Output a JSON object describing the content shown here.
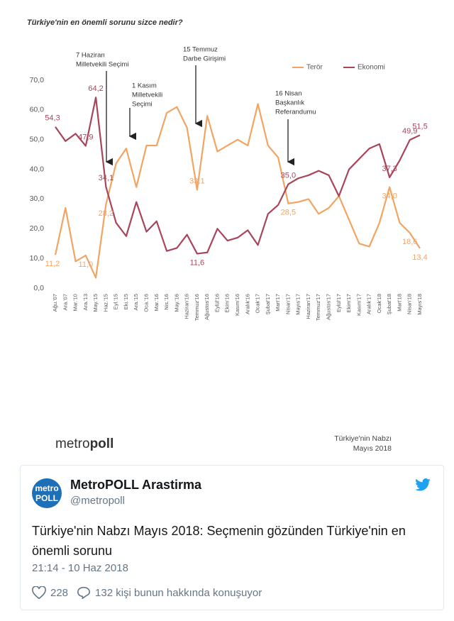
{
  "chart_data": {
    "type": "line",
    "title": "Türkiye'nin en önemli sorunu sizce nedir?",
    "categories": [
      "Ağu.'07",
      "Ara.'07",
      "Mar.'10",
      "Ara.'13",
      "May.'15",
      "Haz.'15",
      "Eyl.'15",
      "Eki.'15",
      "Ara.'15",
      "Oca.'16",
      "Mar.'16",
      "Nis.'16",
      "May.'16",
      "Haziran'16",
      "Temmuz'16",
      "Ağustos'16",
      "Eylül'16",
      "Ekim'16",
      "Kasım'16",
      "Aralık'16",
      "Ocak'17",
      "Şubat'17",
      "Mart'17",
      "Nisan'17",
      "Mayıs'17",
      "Haziran'17",
      "Temmuz'17",
      "Ağustos'17",
      "Eylül'17",
      "Ekim'17",
      "Kasım'17",
      "Aralık'17",
      "Ocak'18",
      "Şubat'18",
      "Mart'18",
      "Nisan'18",
      "Mayıs'18"
    ],
    "series": [
      {
        "name": "Terör",
        "color": "#f2a462",
        "values": [
          11.2,
          27,
          9,
          11.0,
          3.5,
          28.2,
          42,
          47,
          34,
          48,
          48,
          59,
          61,
          54,
          33.1,
          58,
          46,
          48,
          50,
          48,
          62,
          48,
          44,
          28.5,
          29,
          30,
          25,
          27,
          31,
          23,
          15,
          14,
          22,
          34.0,
          22,
          18.6,
          13.4
        ],
        "value_labels": [
          "11,2",
          null,
          null,
          "11,0",
          null,
          "28,2",
          null,
          null,
          null,
          null,
          null,
          null,
          null,
          null,
          "33,1",
          null,
          null,
          null,
          null,
          null,
          null,
          null,
          null,
          "28,5",
          null,
          null,
          null,
          null,
          null,
          null,
          null,
          null,
          null,
          "34,0",
          null,
          "18,6",
          "13,4"
        ]
      },
      {
        "name": "Ekonomi",
        "color": "#a9455a",
        "values": [
          54.3,
          49.5,
          52,
          47.9,
          64.2,
          34.1,
          22,
          17.5,
          29,
          19,
          22.5,
          12.5,
          13.5,
          18,
          11.6,
          12,
          20,
          16,
          17,
          19.5,
          14.5,
          25,
          28,
          35.0,
          37,
          38,
          39.5,
          38,
          31,
          40,
          43.5,
          47,
          48.5,
          37.3,
          43,
          49.9,
          51.5
        ],
        "value_labels": [
          "54,3",
          null,
          null,
          "47,9",
          "64,2",
          "34,1",
          null,
          null,
          null,
          null,
          null,
          null,
          null,
          null,
          "11,6",
          null,
          null,
          null,
          null,
          null,
          null,
          null,
          null,
          "35,0",
          null,
          null,
          null,
          null,
          null,
          null,
          null,
          null,
          null,
          "37,3",
          null,
          "49,9",
          "51,5"
        ]
      }
    ],
    "ylim": [
      0,
      70
    ],
    "yticks": [
      {
        "value": 0,
        "label": "0,0"
      },
      {
        "value": 10,
        "label": "10,0"
      },
      {
        "value": 20,
        "label": "20,0"
      },
      {
        "value": 30,
        "label": "30,0"
      },
      {
        "value": 40,
        "label": "40,0"
      },
      {
        "value": 50,
        "label": "50,0"
      },
      {
        "value": 60,
        "label": "60,0"
      },
      {
        "value": 70,
        "label": "70,0"
      }
    ],
    "grid": false,
    "legend": "top-right",
    "annotations": [
      {
        "lines": [
          "7 Haziran",
          "Milletvekili Seçimi"
        ]
      },
      {
        "lines": [
          "1 Kasım",
          "Milletvekili",
          "Seçimi"
        ]
      },
      {
        "lines": [
          "15 Temmuz",
          "Darbe Girişimi"
        ]
      },
      {
        "lines": [
          "16 Nisan",
          "Başkanlık",
          "Referandumu"
        ]
      }
    ],
    "logo": {
      "light": "metro",
      "bold": "poll"
    },
    "source": [
      "Türkiye'nin Nabzı",
      "Mayıs 2018"
    ]
  },
  "tweet": {
    "avatar": [
      "metro",
      "POLL"
    ],
    "name": "MetroPOLL Arastirma",
    "handle": "@metropoll",
    "text": "Türkiye'nin Nabzı Mayıs 2018: Seçmenin gözünden Türkiye'nin en önemli sorunu",
    "date": "21:14 - 10 Haz 2018",
    "likes": 228,
    "replies": "132 kişi bunun hakkında konuşuyor"
  }
}
